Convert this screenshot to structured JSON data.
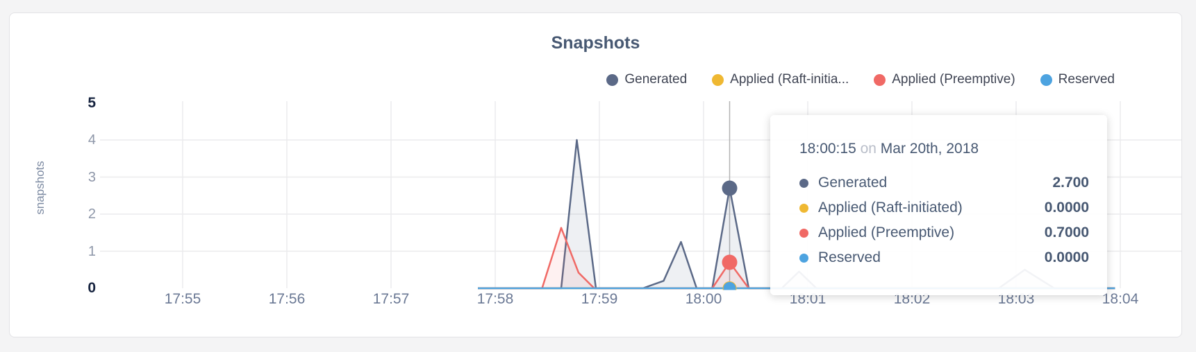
{
  "page": {
    "background": "#f4f4f5"
  },
  "card": {
    "background": "#ffffff",
    "border_color": "#e2e2e6"
  },
  "chart": {
    "title": "Snapshots",
    "title_color": "#475872",
    "ylabel": "snapshots",
    "legend": {
      "items": [
        {
          "label": "Generated",
          "color": "#5b6987"
        },
        {
          "label": "Applied (Raft-initia...",
          "color": "#efb832"
        },
        {
          "label": "Applied (Preemptive)",
          "color": "#f06965"
        },
        {
          "label": "Reserved",
          "color": "#4da3e0"
        }
      ]
    },
    "colors": {
      "gridline": "#ebebed",
      "crosshair": "#b3b3b3",
      "x_tick_text": "#6a7894",
      "y_tick_text": "#8d96a8",
      "y_tick_bold_text": "#16233f"
    }
  },
  "tooltip": {
    "time": "18:00:15",
    "conjunction": "on",
    "date": "Mar 20th, 2018",
    "rows": [
      {
        "name": "Generated",
        "color": "#5b6987",
        "value": "2.700"
      },
      {
        "name": "Applied (Raft-initiated)",
        "color": "#efb832",
        "value": "0.0000"
      },
      {
        "name": "Applied (Preemptive)",
        "color": "#f06965",
        "value": "0.7000"
      },
      {
        "name": "Reserved",
        "color": "#4da3e0",
        "value": "0.0000"
      }
    ]
  },
  "chart_data": {
    "type": "area",
    "title": "Snapshots",
    "xlabel": "",
    "ylabel": "snapshots",
    "ylim": [
      0,
      5
    ],
    "y_ticks": [
      "5",
      "4",
      "3",
      "2",
      "1",
      "0"
    ],
    "y_ticks_bold": [
      "5",
      "0"
    ],
    "y_gridlines": [
      1,
      2,
      3,
      4
    ],
    "x_ticks": [
      "17:55",
      "17:56",
      "17:57",
      "17:58",
      "17:59",
      "18:00",
      "18:01",
      "18:02",
      "18:03",
      "18:04"
    ],
    "grid": true,
    "legend_position": "top-right",
    "highlight_time": "18:00:15",
    "highlight_date": "Mar 20th, 2018",
    "series": [
      {
        "name": "Generated",
        "color": "#5b6987",
        "fill_opacity": 0.1,
        "dot_radius": 11,
        "highlight_value": 2.7,
        "points": [
          [
            "17:57:50",
            0
          ],
          [
            "17:58:38",
            0
          ],
          [
            "17:58:47",
            4.0
          ],
          [
            "17:58:58",
            0
          ],
          [
            "17:59:25",
            0
          ],
          [
            "17:59:37",
            0.2
          ],
          [
            "17:59:47",
            1.25
          ],
          [
            "17:59:56",
            0
          ],
          [
            "18:00:05",
            0
          ],
          [
            "18:00:15",
            2.7
          ],
          [
            "18:00:26",
            0
          ],
          [
            "18:00:45",
            0
          ],
          [
            "18:00:55",
            0.45
          ],
          [
            "18:01:05",
            0
          ],
          [
            "18:02:50",
            0
          ],
          [
            "18:03:05",
            0.5
          ],
          [
            "18:03:22",
            0
          ],
          [
            "18:03:57",
            0
          ]
        ]
      },
      {
        "name": "Applied (Raft-initiated)",
        "color": "#efb832",
        "fill_opacity": 0.08,
        "dot_radius": 10,
        "highlight_value": 0,
        "points": [
          [
            "17:57:50",
            0
          ],
          [
            "18:03:57",
            0
          ]
        ]
      },
      {
        "name": "Applied (Preemptive)",
        "color": "#f06965",
        "fill_opacity": 0.09,
        "dot_radius": 11,
        "highlight_value": 0.7,
        "points": [
          [
            "17:57:50",
            0
          ],
          [
            "17:58:27",
            0
          ],
          [
            "17:58:38",
            1.63
          ],
          [
            "17:58:48",
            0.42
          ],
          [
            "17:58:57",
            0
          ],
          [
            "18:00:05",
            0
          ],
          [
            "18:00:15",
            0.7
          ],
          [
            "18:00:26",
            0
          ],
          [
            "18:03:57",
            0
          ]
        ]
      },
      {
        "name": "Reserved",
        "color": "#4da3e0",
        "fill_opacity": 0.08,
        "dot_radius": 9,
        "highlight_value": 0,
        "points": [
          [
            "17:57:50",
            0
          ],
          [
            "18:03:57",
            0
          ]
        ]
      }
    ]
  }
}
